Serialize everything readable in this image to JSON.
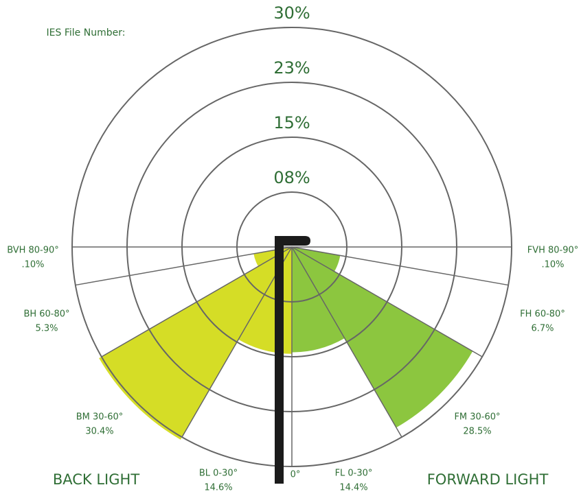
{
  "chart_data": {
    "type": "bug",
    "annotation": "IES File Number:",
    "rlim": [
      0,
      30
    ],
    "rticks": [
      {
        "value": 7.5,
        "label": "08%"
      },
      {
        "value": 15,
        "label": "15%"
      },
      {
        "value": 22.5,
        "label": "23%"
      },
      {
        "value": 30,
        "label": "30%"
      }
    ],
    "zero_label": "0°",
    "series": [
      {
        "name": "BACK LIGHT",
        "color": "#d5dd26",
        "categories": [
          "BL 0-30°",
          "BM 30-60°",
          "BH 60-80°",
          "BVH 80-90°"
        ],
        "values": [
          14.6,
          30.4,
          5.3,
          0.1
        ],
        "value_labels": [
          "14.6%",
          "30.4%",
          "5.3%",
          ".10%"
        ]
      },
      {
        "name": "FORWARD LIGHT",
        "color": "#8cc63f",
        "categories": [
          "FL 0-30°",
          "FM 30-60°",
          "FH 60-80°",
          "FVH 80-90°"
        ],
        "values": [
          14.4,
          28.5,
          6.7,
          0.1
        ],
        "value_labels": [
          "14.4%",
          "28.5%",
          "6.7%",
          ".10%"
        ]
      }
    ]
  }
}
